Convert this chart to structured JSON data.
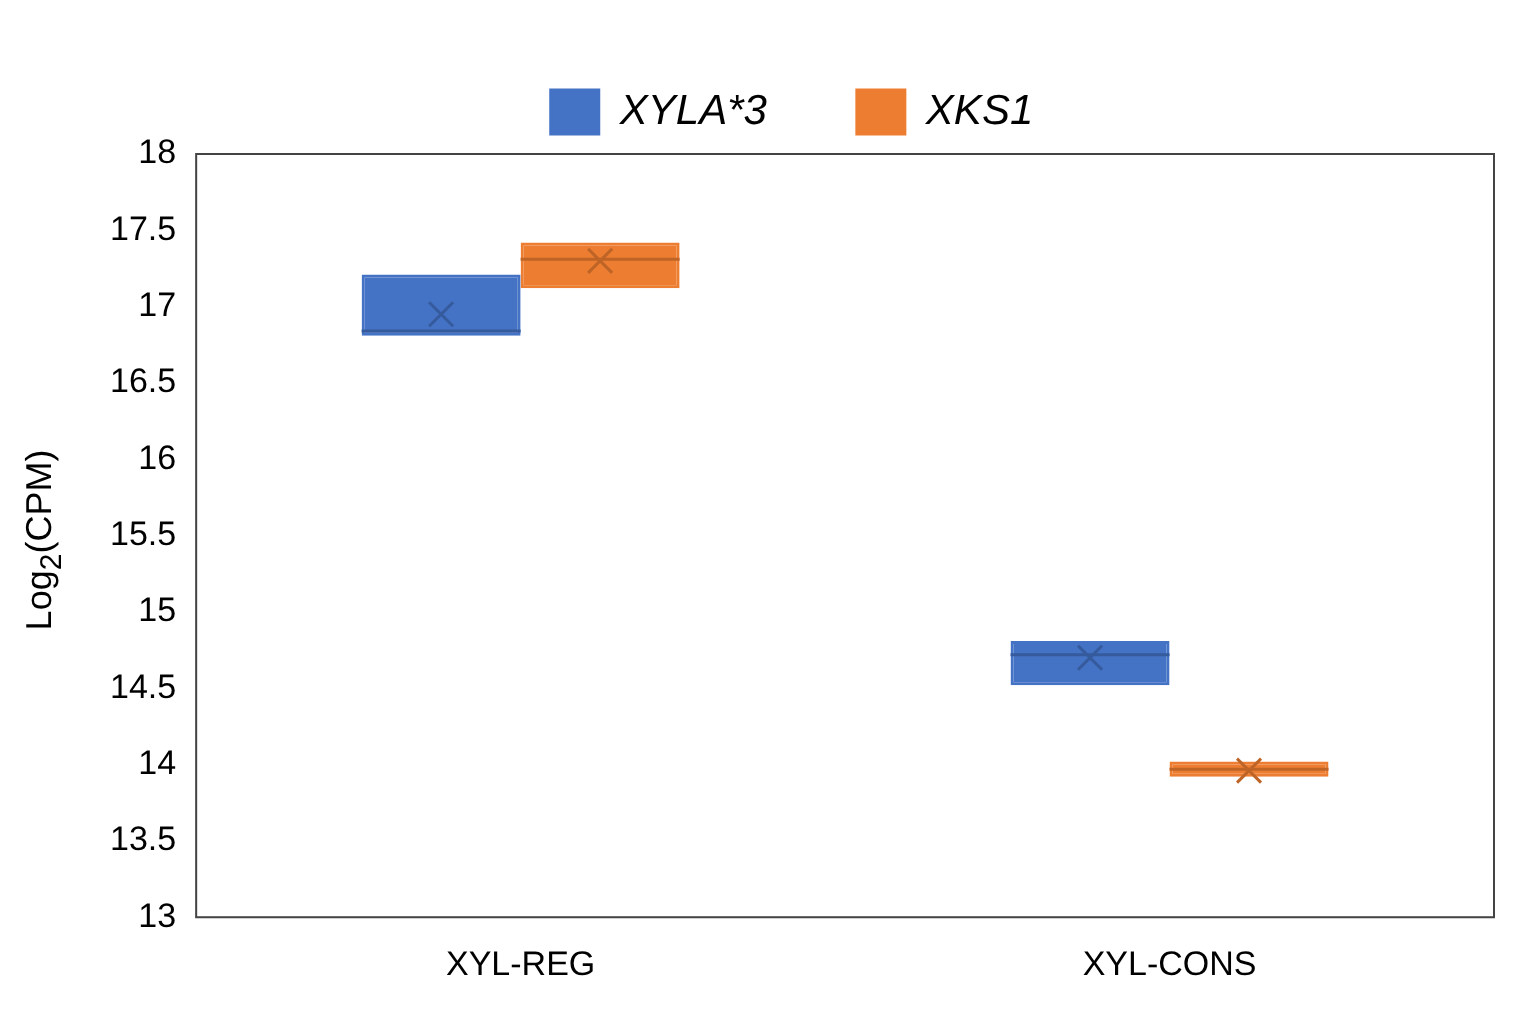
{
  "chart_data": {
    "type": "box",
    "ylabel": "Log$_{2}$(CPM)",
    "categories": [
      "XYL-REG",
      "XYL-CONS"
    ],
    "series": [
      {
        "name": "XYLA*3",
        "color": "#4472c4",
        "boxes": [
          {
            "low": 16.81,
            "q1": 16.81,
            "median": 16.84,
            "q3": 17.21,
            "high": 17.21,
            "mean": 16.95
          },
          {
            "low": 14.52,
            "q1": 14.52,
            "median": 14.72,
            "q3": 14.81,
            "high": 14.81,
            "mean": 14.7
          }
        ]
      },
      {
        "name": "XKS1",
        "color": "#ed7d31",
        "boxes": [
          {
            "low": 17.12,
            "q1": 17.12,
            "median": 17.31,
            "q3": 17.42,
            "high": 17.42,
            "mean": 17.3
          },
          {
            "low": 13.92,
            "q1": 13.92,
            "median": 13.97,
            "q3": 14.02,
            "high": 14.02,
            "mean": 13.96
          }
        ]
      }
    ],
    "ylim": [
      13,
      18
    ],
    "yticks": [
      13,
      13.5,
      14,
      14.5,
      15,
      15.5,
      16,
      16.5,
      17,
      17.5,
      18
    ],
    "grid": false,
    "legend": "top"
  }
}
